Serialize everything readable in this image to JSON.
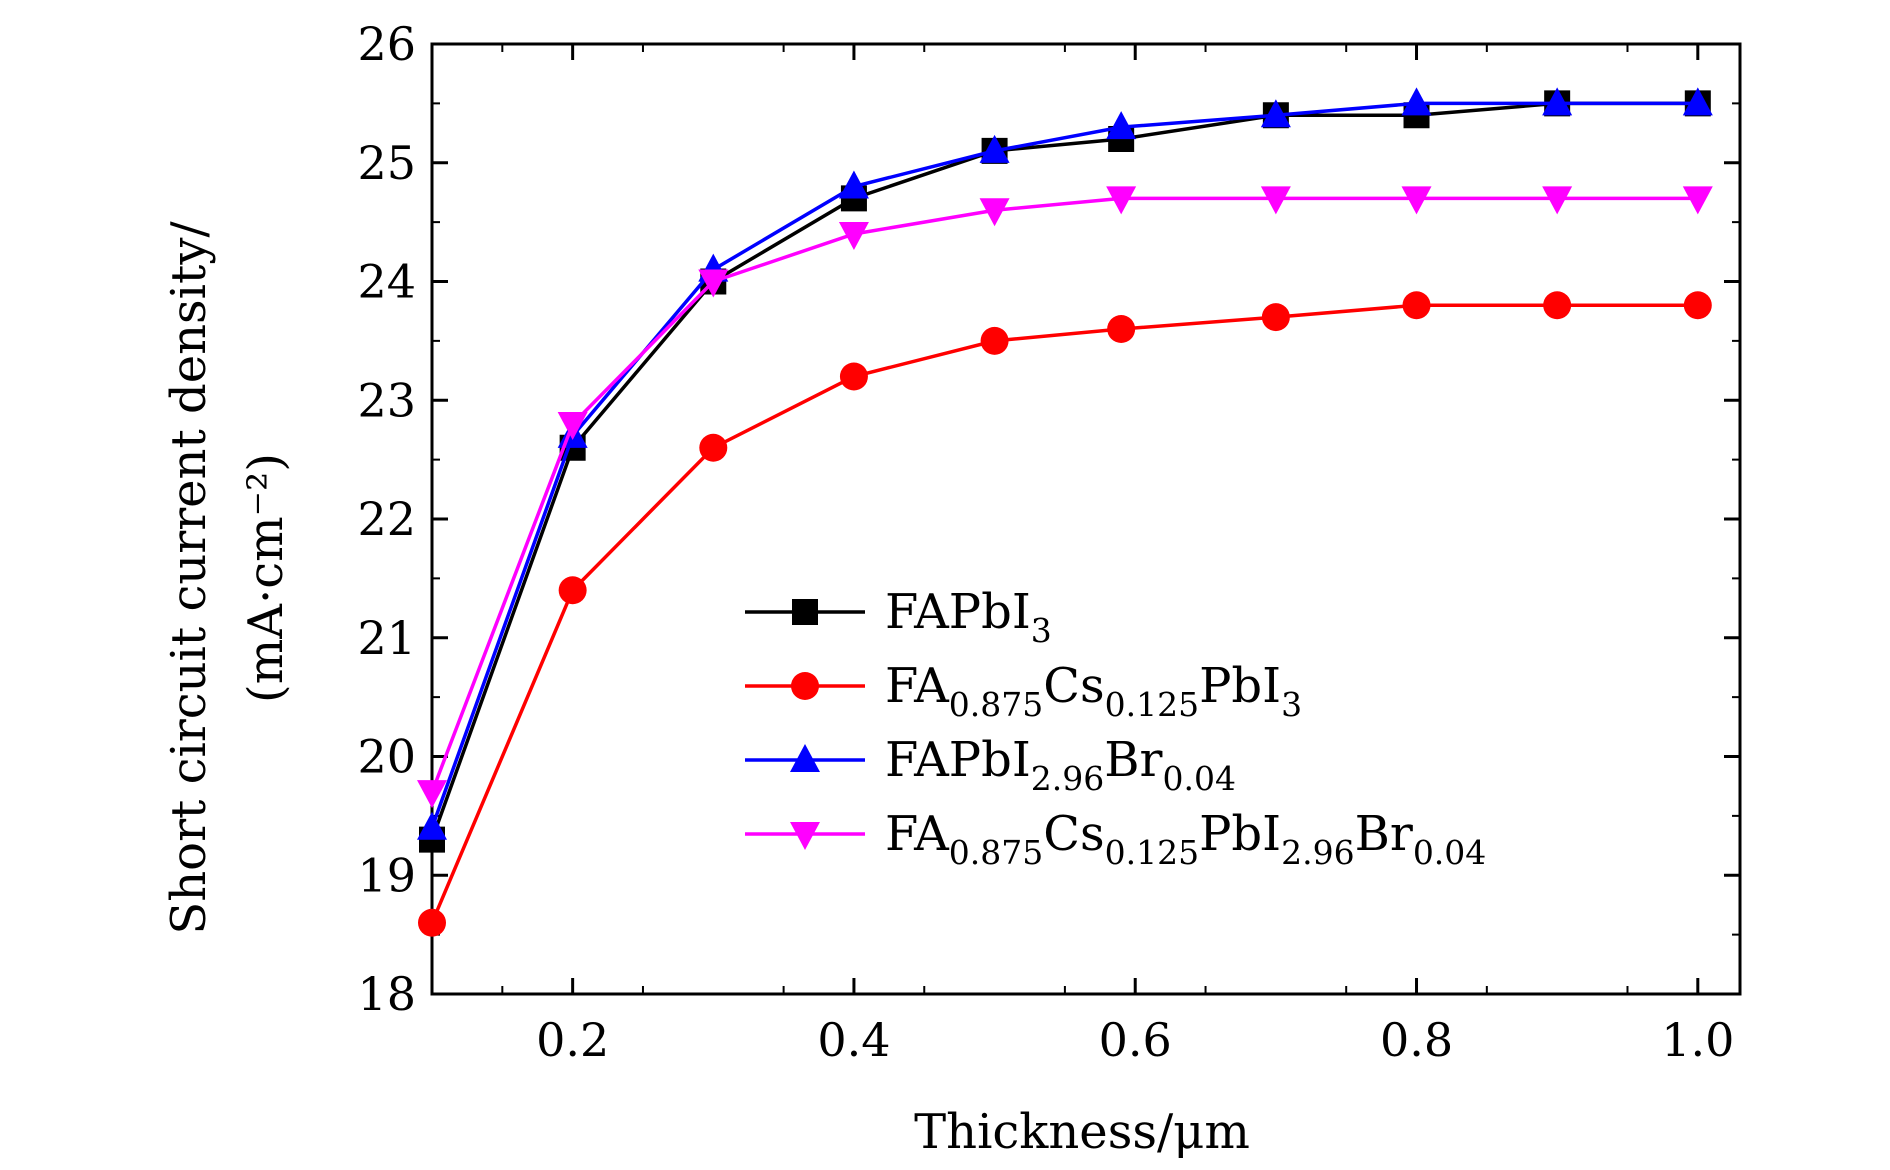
{
  "chart_data": {
    "type": "line",
    "title": "",
    "xlabel": "Thickness/μm",
    "ylabel_line1": "Short circuit current density/",
    "ylabel_line2": "(mA·cm⁻²)",
    "xlim": [
      0.1,
      1.03
    ],
    "ylim": [
      18,
      26
    ],
    "xticks": [
      0.2,
      0.4,
      0.6,
      0.8,
      1.0
    ],
    "xtick_labels": [
      "0.2",
      "0.4",
      "0.6",
      "0.8",
      "1.0"
    ],
    "yticks": [
      18,
      19,
      20,
      21,
      22,
      23,
      24,
      25,
      26
    ],
    "ytick_labels": [
      "18",
      "19",
      "20",
      "21",
      "22",
      "23",
      "24",
      "25",
      "26"
    ],
    "grid": false,
    "legend_position": "lower-right",
    "x": [
      0.1,
      0.2,
      0.3,
      0.4,
      0.5,
      0.59,
      0.7,
      0.8,
      0.9,
      1.0
    ],
    "series": [
      {
        "name": "FAPbI3",
        "name_parts": [
          {
            "t": "FAPbI"
          },
          {
            "t": "3",
            "sub": true
          }
        ],
        "color": "#000000",
        "marker": "square",
        "values": [
          19.3,
          22.6,
          24.0,
          24.7,
          25.1,
          25.2,
          25.4,
          25.4,
          25.5,
          25.5
        ]
      },
      {
        "name": "FA0.875Cs0.125PbI3",
        "name_parts": [
          {
            "t": "FA"
          },
          {
            "t": "0.875",
            "sub": true
          },
          {
            "t": "Cs"
          },
          {
            "t": "0.125",
            "sub": true
          },
          {
            "t": "PbI"
          },
          {
            "t": "3",
            "sub": true
          }
        ],
        "color": "#ff0000",
        "marker": "circle",
        "values": [
          18.6,
          21.4,
          22.6,
          23.2,
          23.5,
          23.6,
          23.7,
          23.8,
          23.8,
          23.8
        ]
      },
      {
        "name": "FAPbI2.96Br0.04",
        "name_parts": [
          {
            "t": "FAPbI"
          },
          {
            "t": "2.96",
            "sub": true
          },
          {
            "t": "Br"
          },
          {
            "t": "0.04",
            "sub": true
          }
        ],
        "color": "#0000ff",
        "marker": "triangle-up",
        "values": [
          19.4,
          22.7,
          24.1,
          24.8,
          25.1,
          25.3,
          25.4,
          25.5,
          25.5,
          25.5
        ]
      },
      {
        "name": "FA0.875Cs0.125PbI2.96Br0.04",
        "name_parts": [
          {
            "t": "FA"
          },
          {
            "t": "0.875",
            "sub": true
          },
          {
            "t": "Cs"
          },
          {
            "t": "0.125",
            "sub": true
          },
          {
            "t": "PbI"
          },
          {
            "t": "2.96",
            "sub": true
          },
          {
            "t": "Br"
          },
          {
            "t": "0.04",
            "sub": true
          }
        ],
        "color": "#ff00ff",
        "marker": "triangle-down",
        "values": [
          19.7,
          22.8,
          24.0,
          24.4,
          24.6,
          24.7,
          24.7,
          24.7,
          24.7,
          24.7
        ]
      }
    ]
  }
}
